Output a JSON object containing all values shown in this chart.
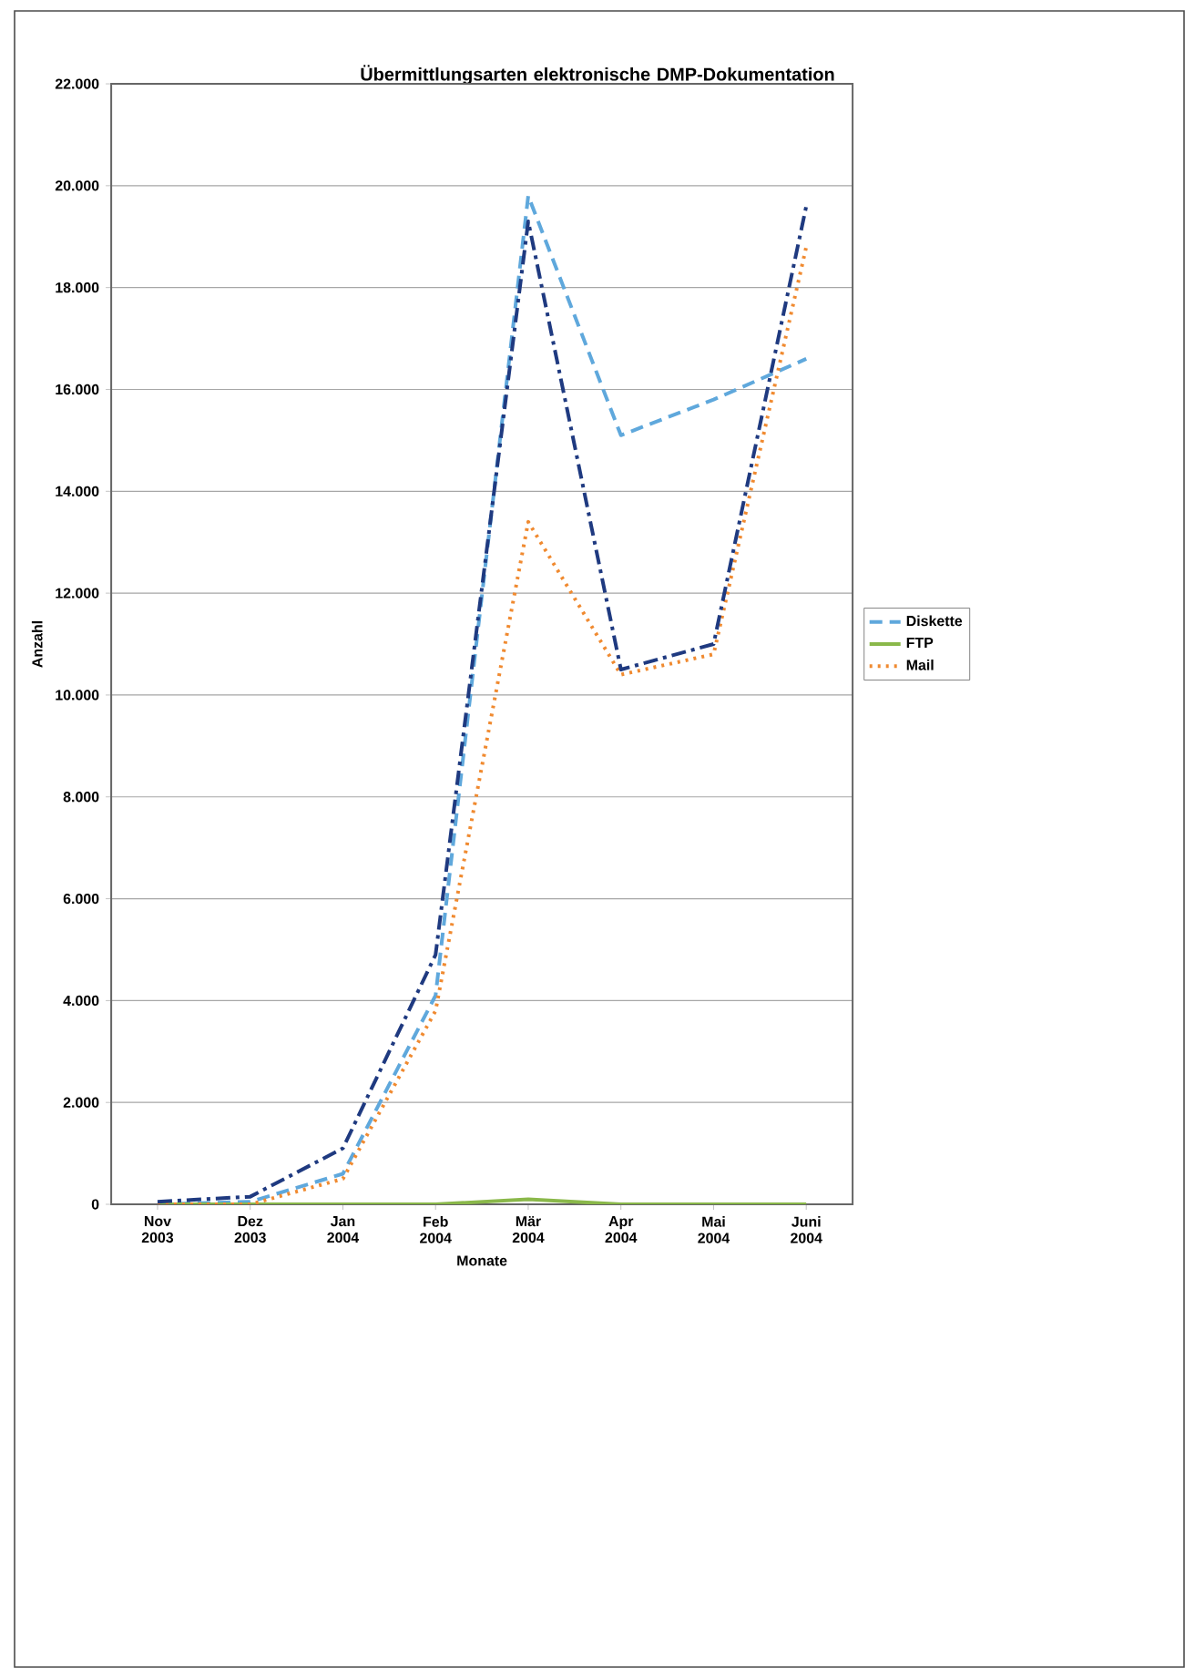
{
  "chart_data": {
    "type": "line",
    "title": "Übermittlungsarten elektronische DMP-Dokumentation",
    "xlabel": "Monate",
    "ylabel": "Anzahl",
    "categories": [
      "Nov 2003",
      "Dez 2003",
      "Jan 2004",
      "Feb 2004",
      "Mär 2004",
      "Apr 2004",
      "Mai 2004",
      "Juni 2004"
    ],
    "series": [
      {
        "name": "Diskette",
        "color": "#5fa8dc",
        "line_style": "dashed",
        "values": [
          0,
          50,
          600,
          4100,
          19800,
          15100,
          15800,
          16600
        ]
      },
      {
        "name": "FTP",
        "color": "#8ab84a",
        "line_style": "solid",
        "values": [
          0,
          0,
          0,
          0,
          100,
          0,
          0,
          0
        ]
      },
      {
        "name": "Mail",
        "color": "#f08a30",
        "line_style": "dotted",
        "values": [
          0,
          0,
          500,
          3800,
          13400,
          10400,
          10800,
          18800
        ]
      },
      {
        "color": "#1f3a80",
        "line_style": "dashdot",
        "values": [
          50,
          150,
          1100,
          4900,
          19300,
          10500,
          11000,
          19600
        ]
      }
    ],
    "ylim": [
      0,
      22000
    ],
    "yticks": [
      {
        "value": 0,
        "label": "0"
      },
      {
        "value": 2000,
        "label": "2.000"
      },
      {
        "value": 4000,
        "label": "4.000"
      },
      {
        "value": 6000,
        "label": "6.000"
      },
      {
        "value": 8000,
        "label": "8.000"
      },
      {
        "value": 10000,
        "label": "10.000"
      },
      {
        "value": 12000,
        "label": "12.000"
      },
      {
        "value": 14000,
        "label": "14.000"
      },
      {
        "value": 16000,
        "label": "16.000"
      },
      {
        "value": 18000,
        "label": "18.000"
      },
      {
        "value": 20000,
        "label": "20.000"
      },
      {
        "value": 22000,
        "label": "22.000"
      }
    ],
    "grid": "y",
    "legend": "right"
  }
}
